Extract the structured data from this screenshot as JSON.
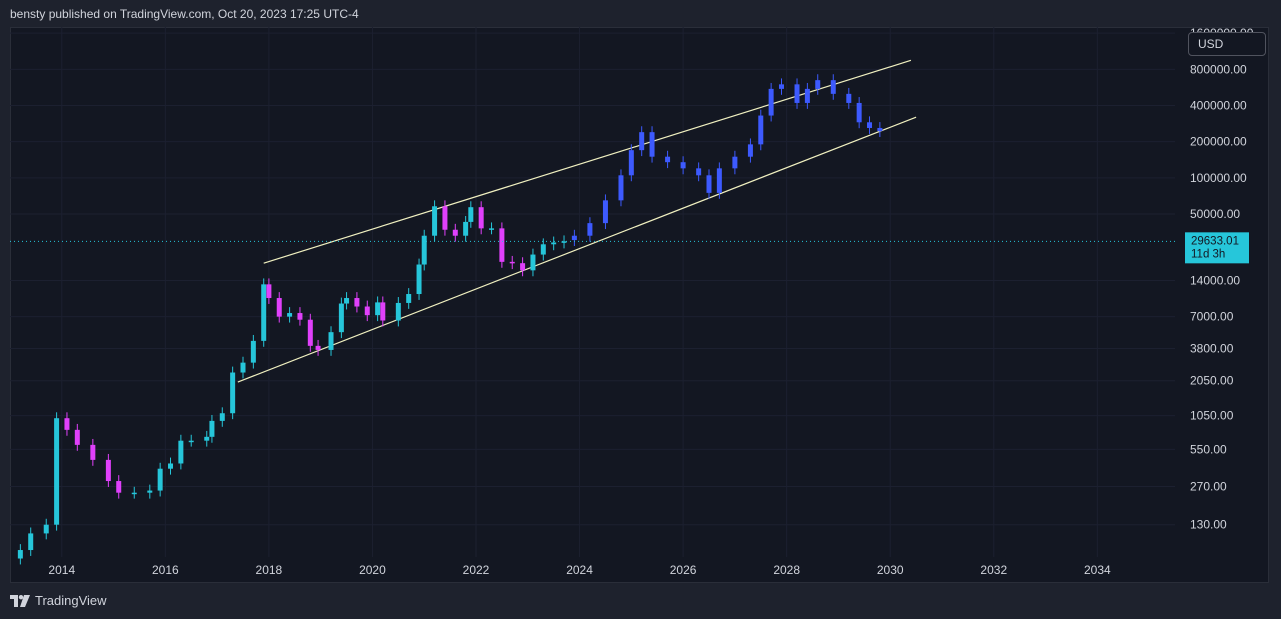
{
  "header": {
    "caption": "bensty published on TradingView.com, Oct 20, 2023 17:25 UTC-4"
  },
  "toolbar": {
    "currency_label": "USD"
  },
  "footer": {
    "brand": "TradingView",
    "logo_icon": "tradingview-logo-icon"
  },
  "colors": {
    "background": "#131722",
    "outer_background": "#1e222d",
    "up_candle": "#26c6da",
    "down_candle": "#e040fb",
    "projection_candle": "#3d5afe",
    "channel_line": "#f0f0c0",
    "price_line": "#26c6da",
    "axis_text": "#d1d4dc"
  },
  "chart_data": {
    "type": "line",
    "scale": "log",
    "title": "",
    "xlabel": "",
    "ylabel": "",
    "x_tick_labels": [
      "2014",
      "2016",
      "2018",
      "2020",
      "2022",
      "2024",
      "2026",
      "2028",
      "2030",
      "2032",
      "2034"
    ],
    "x_range": [
      2013.0,
      2035.5
    ],
    "y_tick_labels": [
      "1600000.00",
      "800000.00",
      "400000.00",
      "200000.00",
      "100000.00",
      "50000.00",
      "14000.00",
      "7000.00",
      "3800.00",
      "2050.00",
      "1050.00",
      "550.00",
      "270.00",
      "130.00"
    ],
    "y_range": [
      70,
      1800000
    ],
    "current_price": {
      "label": "29633.01",
      "countdown": "11d 3h",
      "value": 29633.01
    },
    "channel": [
      {
        "name": "",
        "points": [
          [
            2017.9,
            19500
          ],
          [
            2030.4,
            950000
          ]
        ]
      },
      {
        "name": "",
        "points": [
          [
            2017.4,
            2000
          ],
          [
            2030.5,
            320000
          ]
        ]
      }
    ],
    "series": [
      {
        "kind": "history",
        "x": [
          2013.2,
          2013.4,
          2013.7,
          2013.9,
          2014.1,
          2014.3,
          2014.6,
          2014.9,
          2015.1,
          2015.4,
          2015.7,
          2015.9,
          2016.1,
          2016.3,
          2016.5,
          2016.8,
          2016.9,
          2017.1,
          2017.3,
          2017.5,
          2017.7,
          2017.9,
          2018.0,
          2018.2,
          2018.4,
          2018.6,
          2018.8,
          2018.95,
          2019.2,
          2019.4,
          2019.5,
          2019.7,
          2019.9,
          2020.1,
          2020.2,
          2020.5,
          2020.7,
          2020.9,
          2021.0,
          2021.2,
          2021.4,
          2021.6,
          2021.8,
          2021.9,
          2022.1,
          2022.3,
          2022.5,
          2022.7,
          2022.9,
          2023.1,
          2023.3,
          2023.5,
          2023.7
        ],
        "values": [
          80,
          110,
          130,
          1000,
          800,
          600,
          450,
          300,
          240,
          240,
          250,
          380,
          420,
          650,
          650,
          700,
          950,
          1100,
          2400,
          2900,
          4400,
          13000,
          10000,
          7000,
          7500,
          6600,
          4000,
          3700,
          5200,
          9000,
          10000,
          8500,
          7200,
          9200,
          6500,
          9100,
          10800,
          19000,
          33000,
          58000,
          37000,
          33000,
          43000,
          57000,
          38000,
          38000,
          20000,
          19500,
          17000,
          23000,
          28000,
          29000,
          29633
        ]
      },
      {
        "kind": "projection",
        "x": [
          2023.9,
          2024.2,
          2024.5,
          2024.8,
          2025.0,
          2025.2,
          2025.4,
          2025.7,
          2026.0,
          2026.3,
          2026.5,
          2026.7,
          2027.0,
          2027.3,
          2027.5,
          2027.7,
          2027.9,
          2028.2,
          2028.4,
          2028.6,
          2028.9,
          2029.2,
          2029.4,
          2029.6,
          2029.8
        ],
        "values": [
          33000,
          42000,
          65000,
          105000,
          170000,
          240000,
          150000,
          135000,
          120000,
          105000,
          75000,
          120000,
          150000,
          190000,
          330000,
          550000,
          600000,
          420000,
          550000,
          650000,
          500000,
          420000,
          290000,
          260000,
          245000
        ]
      }
    ],
    "annotations": []
  }
}
